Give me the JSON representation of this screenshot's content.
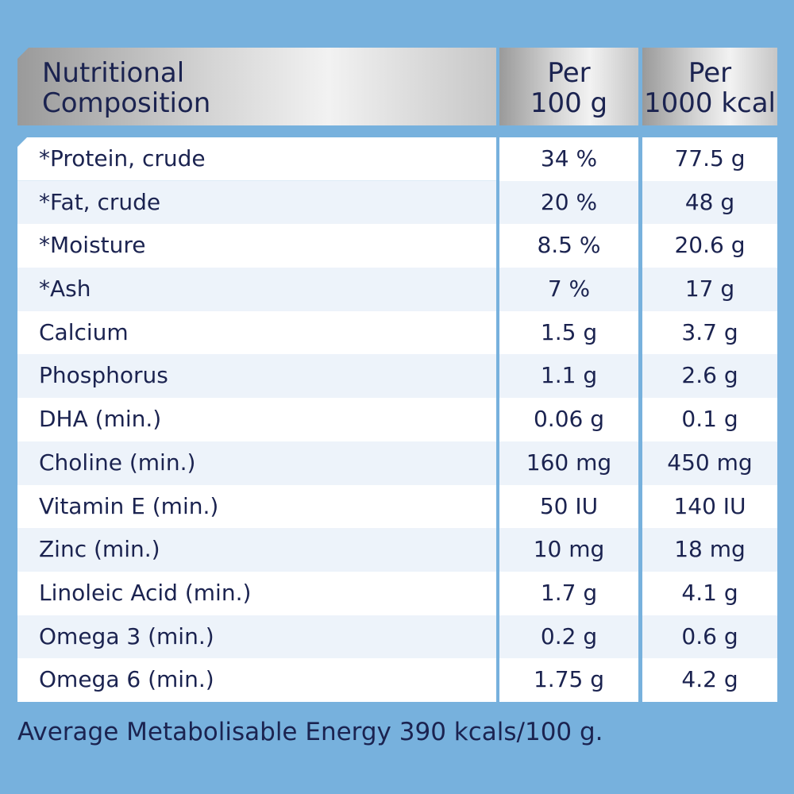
{
  "header": {
    "col1": [
      "Nutritional",
      "Composition"
    ],
    "col2": [
      "Per",
      "100 g"
    ],
    "col3": [
      "Per",
      "1000 kcal"
    ]
  },
  "rows": [
    {
      "name": "*Protein, crude",
      "per100g": "34 %",
      "per1000kcal": "77.5 g"
    },
    {
      "name": "*Fat, crude",
      "per100g": "20 %",
      "per1000kcal": "48 g"
    },
    {
      "name": "*Moisture",
      "per100g": "8.5 %",
      "per1000kcal": "20.6 g"
    },
    {
      "name": "*Ash",
      "per100g": "7 %",
      "per1000kcal": "17 g"
    },
    {
      "name": "Calcium",
      "per100g": "1.5 g",
      "per1000kcal": "3.7 g"
    },
    {
      "name": "Phosphorus",
      "per100g": "1.1 g",
      "per1000kcal": "2.6 g"
    },
    {
      "name": "DHA (min.)",
      "per100g": "0.06 g",
      "per1000kcal": "0.1 g"
    },
    {
      "name": "Choline (min.)",
      "per100g": "160 mg",
      "per1000kcal": "450 mg"
    },
    {
      "name": "Vitamin E (min.)",
      "per100g": "50 IU",
      "per1000kcal": "140 IU"
    },
    {
      "name": "Zinc (min.)",
      "per100g": "10 mg",
      "per1000kcal": "18 mg"
    },
    {
      "name": "Linoleic Acid (min.)",
      "per100g": "1.7 g",
      "per1000kcal": "4.1 g"
    },
    {
      "name": "Omega 3 (min.)",
      "per100g": "0.2 g",
      "per1000kcal": "0.6 g"
    },
    {
      "name": "Omega 6 (min.)",
      "per100g": "1.75 g",
      "per1000kcal": "4.2 g"
    }
  ],
  "footer": "Average Metabolisable Energy 390 kcals/100 g."
}
